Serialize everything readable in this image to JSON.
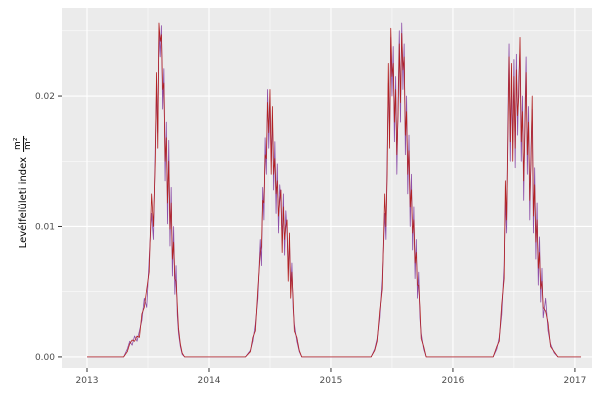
{
  "figure": {
    "background": "#FFFFFF",
    "panel_background": "#EBEBEB",
    "grid_major_color": "#FFFFFF",
    "grid_minor_color": "#FFFFFF",
    "tick_label_color": "#4D4D4D",
    "axis_title_color": "#000000"
  },
  "y_axis_title": {
    "text": "Levélfelületi index",
    "frac_numerator": "m²",
    "frac_denominator": "m²"
  },
  "chart_data": {
    "type": "line",
    "title": "",
    "xlabel": "",
    "ylabel": "Levélfelületi index m²/m²",
    "x_tick_labels": [
      "2013",
      "2014",
      "2015",
      "2016",
      "2017"
    ],
    "x_ticks": [
      2013,
      2014,
      2015,
      2016,
      2017
    ],
    "y_tick_labels": [
      "0.00",
      "0.01",
      "0.02"
    ],
    "y_ticks": [
      0.0,
      0.01,
      0.02
    ],
    "y_minor_ticks": [
      0.005,
      0.015,
      0.025
    ],
    "x_minor_ticks": [
      2013.5,
      2014.5,
      2015.5,
      2016.5
    ],
    "xlim": [
      2012.795,
      2017.14
    ],
    "ylim": [
      -0.00085,
      0.02675
    ],
    "grid": true,
    "legend_position": "none",
    "series": [
      {
        "name": "series-purple",
        "color": "#8E4FA8"
      },
      {
        "name": "series-red",
        "color": "#B22222"
      }
    ],
    "points": [
      [
        2013.0,
        0,
        0
      ],
      [
        2013.1,
        0,
        0
      ],
      [
        2013.2,
        0,
        0
      ],
      [
        2013.3,
        0,
        0
      ],
      [
        2013.33,
        0.0006,
        0.0004
      ],
      [
        2013.35,
        0.0012,
        0.001
      ],
      [
        2013.37,
        0.0009,
        0.0013
      ],
      [
        2013.39,
        0.0016,
        0.0012
      ],
      [
        2013.41,
        0.0012,
        0.0016
      ],
      [
        2013.43,
        0.002,
        0.0015
      ],
      [
        2013.45,
        0.0028,
        0.0033
      ],
      [
        2013.47,
        0.0045,
        0.0038
      ],
      [
        2013.49,
        0.0038,
        0.0052
      ],
      [
        2013.51,
        0.0075,
        0.0065
      ],
      [
        2013.53,
        0.011,
        0.0125
      ],
      [
        2013.545,
        0.009,
        0.01
      ],
      [
        2013.56,
        0.016,
        0.015
      ],
      [
        2013.57,
        0.0205,
        0.0218
      ],
      [
        2013.58,
        0.0172,
        0.016
      ],
      [
        2013.59,
        0.0252,
        0.0256
      ],
      [
        2013.6,
        0.023,
        0.0242
      ],
      [
        2013.61,
        0.0254,
        0.0247
      ],
      [
        2013.62,
        0.019,
        0.0205
      ],
      [
        2013.63,
        0.0221,
        0.021
      ],
      [
        2013.64,
        0.0135,
        0.015
      ],
      [
        2013.65,
        0.018,
        0.0168
      ],
      [
        2013.66,
        0.0102,
        0.0118
      ],
      [
        2013.67,
        0.0166,
        0.015
      ],
      [
        2013.68,
        0.0085,
        0.0098
      ],
      [
        2013.69,
        0.013,
        0.0118
      ],
      [
        2013.7,
        0.0062,
        0.0075
      ],
      [
        2013.71,
        0.01,
        0.0088
      ],
      [
        2013.72,
        0.0048,
        0.006
      ],
      [
        2013.73,
        0.007,
        0.0058
      ],
      [
        2013.74,
        0.0032,
        0.004
      ],
      [
        2013.75,
        0.0018,
        0.0022
      ],
      [
        2013.765,
        0.0008,
        0.001
      ],
      [
        2013.78,
        0.0002,
        0.0003
      ],
      [
        2013.8,
        0,
        0
      ],
      [
        2013.9,
        0,
        0
      ],
      [
        2014.0,
        0,
        0
      ],
      [
        2014.1,
        0,
        0
      ],
      [
        2014.2,
        0,
        0
      ],
      [
        2014.3,
        0,
        0
      ],
      [
        2014.34,
        0.0005,
        0.0004
      ],
      [
        2014.36,
        0.0012,
        0.0015
      ],
      [
        2014.38,
        0.0025,
        0.002
      ],
      [
        2014.4,
        0.0045,
        0.0052
      ],
      [
        2014.42,
        0.009,
        0.008
      ],
      [
        2014.43,
        0.007,
        0.0085
      ],
      [
        2014.44,
        0.013,
        0.012
      ],
      [
        2014.45,
        0.0105,
        0.0118
      ],
      [
        2014.46,
        0.0168,
        0.0155
      ],
      [
        2014.47,
        0.014,
        0.0152
      ],
      [
        2014.48,
        0.0205,
        0.0195
      ],
      [
        2014.49,
        0.016,
        0.0172
      ],
      [
        2014.5,
        0.0198,
        0.0205
      ],
      [
        2014.51,
        0.015,
        0.014
      ],
      [
        2014.52,
        0.0185,
        0.0192
      ],
      [
        2014.53,
        0.0128,
        0.014
      ],
      [
        2014.54,
        0.0165,
        0.0152
      ],
      [
        2014.55,
        0.011,
        0.0125
      ],
      [
        2014.56,
        0.0148,
        0.0135
      ],
      [
        2014.57,
        0.0095,
        0.0108
      ],
      [
        2014.58,
        0.0132,
        0.012
      ],
      [
        2014.59,
        0.0118,
        0.0128
      ],
      [
        2014.6,
        0.009,
        0.008
      ],
      [
        2014.61,
        0.0125,
        0.0115
      ],
      [
        2014.62,
        0.0078,
        0.009
      ],
      [
        2014.63,
        0.0112,
        0.01
      ],
      [
        2014.64,
        0.0095,
        0.0105
      ],
      [
        2014.65,
        0.0068,
        0.0058
      ],
      [
        2014.66,
        0.0088,
        0.0095
      ],
      [
        2014.67,
        0.0052,
        0.0045
      ],
      [
        2014.68,
        0.0072,
        0.0065
      ],
      [
        2014.69,
        0.0038,
        0.0045
      ],
      [
        2014.7,
        0.0025,
        0.002
      ],
      [
        2014.72,
        0.0012,
        0.0015
      ],
      [
        2014.74,
        0.0004,
        0.0005
      ],
      [
        2014.76,
        0,
        0
      ],
      [
        2014.85,
        0,
        0
      ],
      [
        2014.95,
        0,
        0
      ],
      [
        2015.05,
        0,
        0
      ],
      [
        2015.15,
        0,
        0
      ],
      [
        2015.25,
        0,
        0
      ],
      [
        2015.33,
        0,
        0
      ],
      [
        2015.36,
        0.0006,
        0.0005
      ],
      [
        2015.38,
        0.0014,
        0.0012
      ],
      [
        2015.4,
        0.003,
        0.0035
      ],
      [
        2015.42,
        0.006,
        0.0052
      ],
      [
        2015.44,
        0.011,
        0.0125
      ],
      [
        2015.45,
        0.009,
        0.01
      ],
      [
        2015.46,
        0.0155,
        0.014
      ],
      [
        2015.47,
        0.021,
        0.0225
      ],
      [
        2015.48,
        0.017,
        0.016
      ],
      [
        2015.49,
        0.0245,
        0.0252
      ],
      [
        2015.5,
        0.02,
        0.0215
      ],
      [
        2015.51,
        0.0238,
        0.0225
      ],
      [
        2015.52,
        0.0165,
        0.018
      ],
      [
        2015.53,
        0.0215,
        0.0205
      ],
      [
        2015.54,
        0.014,
        0.0155
      ],
      [
        2015.55,
        0.0195,
        0.0185
      ],
      [
        2015.56,
        0.025,
        0.024
      ],
      [
        2015.57,
        0.018,
        0.0195
      ],
      [
        2015.58,
        0.0256,
        0.0248
      ],
      [
        2015.59,
        0.0205,
        0.022
      ],
      [
        2015.6,
        0.024,
        0.023
      ],
      [
        2015.61,
        0.0155,
        0.017
      ],
      [
        2015.62,
        0.02,
        0.0188
      ],
      [
        2015.63,
        0.0125,
        0.014
      ],
      [
        2015.64,
        0.017,
        0.0158
      ],
      [
        2015.65,
        0.01,
        0.0115
      ],
      [
        2015.66,
        0.014,
        0.0128
      ],
      [
        2015.67,
        0.0082,
        0.0095
      ],
      [
        2015.68,
        0.0115,
        0.0105
      ],
      [
        2015.69,
        0.006,
        0.0072
      ],
      [
        2015.7,
        0.009,
        0.008
      ],
      [
        2015.71,
        0.0045,
        0.0055
      ],
      [
        2015.72,
        0.0065,
        0.0055
      ],
      [
        2015.73,
        0.003,
        0.0038
      ],
      [
        2015.74,
        0.0018,
        0.0014
      ],
      [
        2015.76,
        0.0006,
        0.0008
      ],
      [
        2015.78,
        0,
        0
      ],
      [
        2015.88,
        0,
        0
      ],
      [
        2015.98,
        0,
        0
      ],
      [
        2016.08,
        0,
        0
      ],
      [
        2016.18,
        0,
        0
      ],
      [
        2016.28,
        0,
        0
      ],
      [
        2016.33,
        0,
        0
      ],
      [
        2016.36,
        0.0006,
        0.0008
      ],
      [
        2016.38,
        0.0015,
        0.0012
      ],
      [
        2016.4,
        0.0032,
        0.004
      ],
      [
        2016.42,
        0.007,
        0.006
      ],
      [
        2016.43,
        0.012,
        0.0135
      ],
      [
        2016.44,
        0.0095,
        0.0105
      ],
      [
        2016.45,
        0.018,
        0.0165
      ],
      [
        2016.46,
        0.024,
        0.023
      ],
      [
        2016.47,
        0.015,
        0.0165
      ],
      [
        2016.48,
        0.021,
        0.0225
      ],
      [
        2016.49,
        0.0165,
        0.015
      ],
      [
        2016.5,
        0.0228,
        0.0215
      ],
      [
        2016.51,
        0.0145,
        0.016
      ],
      [
        2016.52,
        0.0232,
        0.022
      ],
      [
        2016.53,
        0.017,
        0.0185
      ],
      [
        2016.54,
        0.0215,
        0.02
      ],
      [
        2016.55,
        0.0235,
        0.0245
      ],
      [
        2016.56,
        0.015,
        0.0165
      ],
      [
        2016.57,
        0.02,
        0.0188
      ],
      [
        2016.58,
        0.012,
        0.0135
      ],
      [
        2016.59,
        0.0185,
        0.0172
      ],
      [
        2016.6,
        0.023,
        0.0218
      ],
      [
        2016.61,
        0.014,
        0.0155
      ],
      [
        2016.62,
        0.0192,
        0.018
      ],
      [
        2016.63,
        0.0105,
        0.012
      ],
      [
        2016.64,
        0.016,
        0.0148
      ],
      [
        2016.65,
        0.019,
        0.02
      ],
      [
        2016.66,
        0.0095,
        0.0108
      ],
      [
        2016.67,
        0.0145,
        0.0132
      ],
      [
        2016.68,
        0.0075,
        0.0088
      ],
      [
        2016.69,
        0.0118,
        0.0105
      ],
      [
        2016.7,
        0.0055,
        0.0068
      ],
      [
        2016.71,
        0.0092,
        0.008
      ],
      [
        2016.72,
        0.0042,
        0.0052
      ],
      [
        2016.73,
        0.0068,
        0.0058
      ],
      [
        2016.74,
        0.003,
        0.0038
      ],
      [
        2016.76,
        0.0045,
        0.0035
      ],
      [
        2016.78,
        0.002,
        0.0026
      ],
      [
        2016.8,
        0.001,
        0.0008
      ],
      [
        2016.83,
        0.0003,
        0.0004
      ],
      [
        2016.86,
        0,
        0
      ],
      [
        2016.95,
        0,
        0
      ],
      [
        2017.05,
        0,
        0
      ]
    ]
  }
}
